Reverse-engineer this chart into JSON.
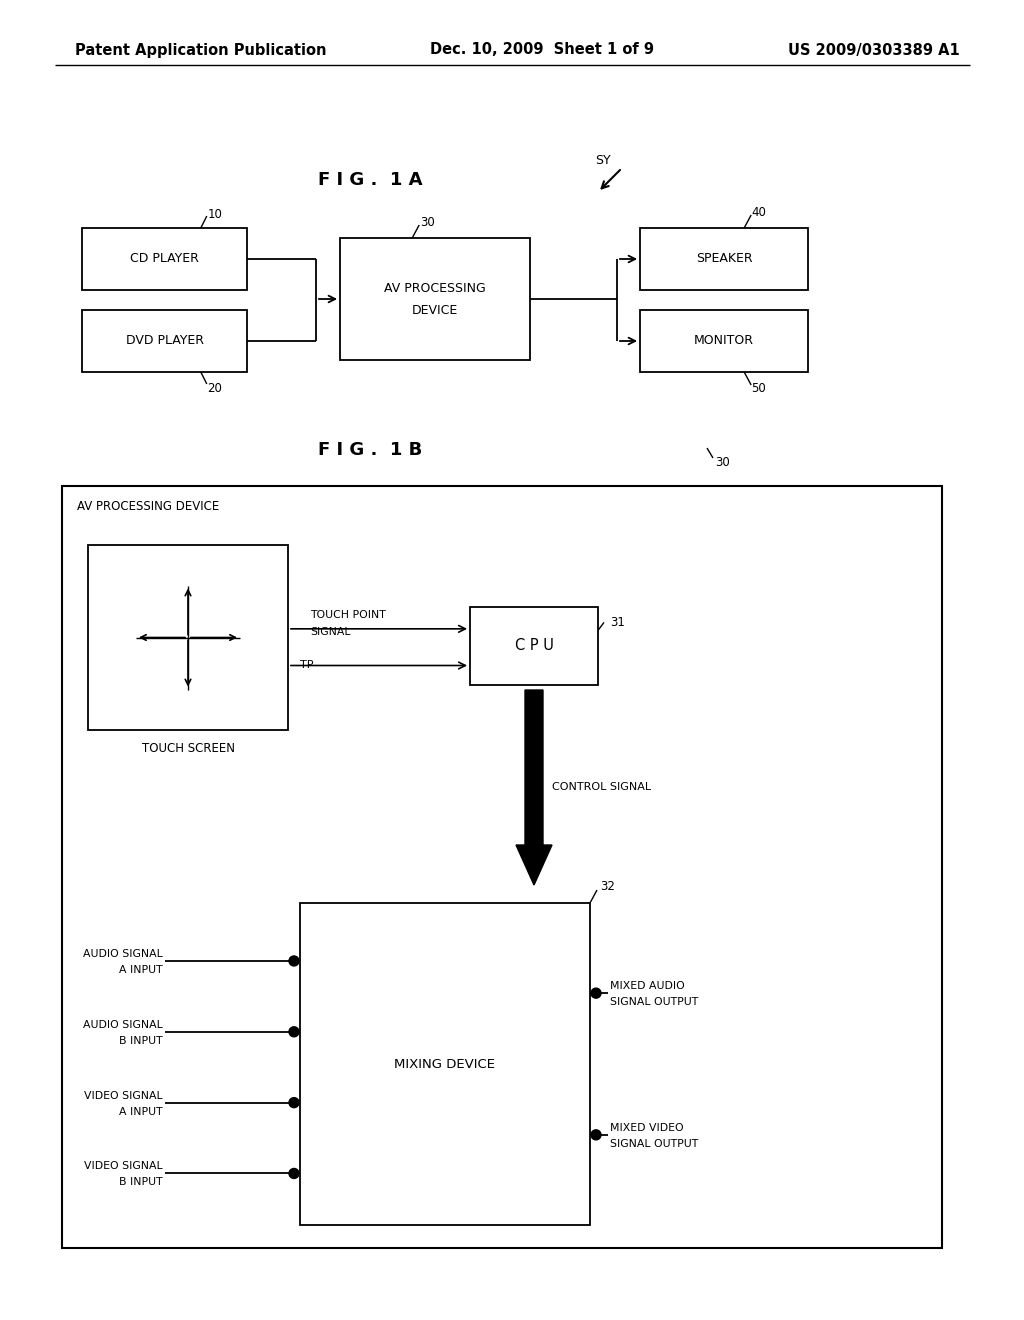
{
  "bg_color": "#ffffff",
  "header_left": "Patent Application Publication",
  "header_mid": "Dec. 10, 2009  Sheet 1 of 9",
  "header_right": "US 2009/0303389 A1",
  "fig1a_title": "F I G .  1 A",
  "fig1b_title": "F I G .  1 B",
  "font_size_header": 10.5,
  "font_size_title": 13,
  "font_size_box": 9,
  "font_size_small": 8,
  "font_size_ref": 8.5
}
